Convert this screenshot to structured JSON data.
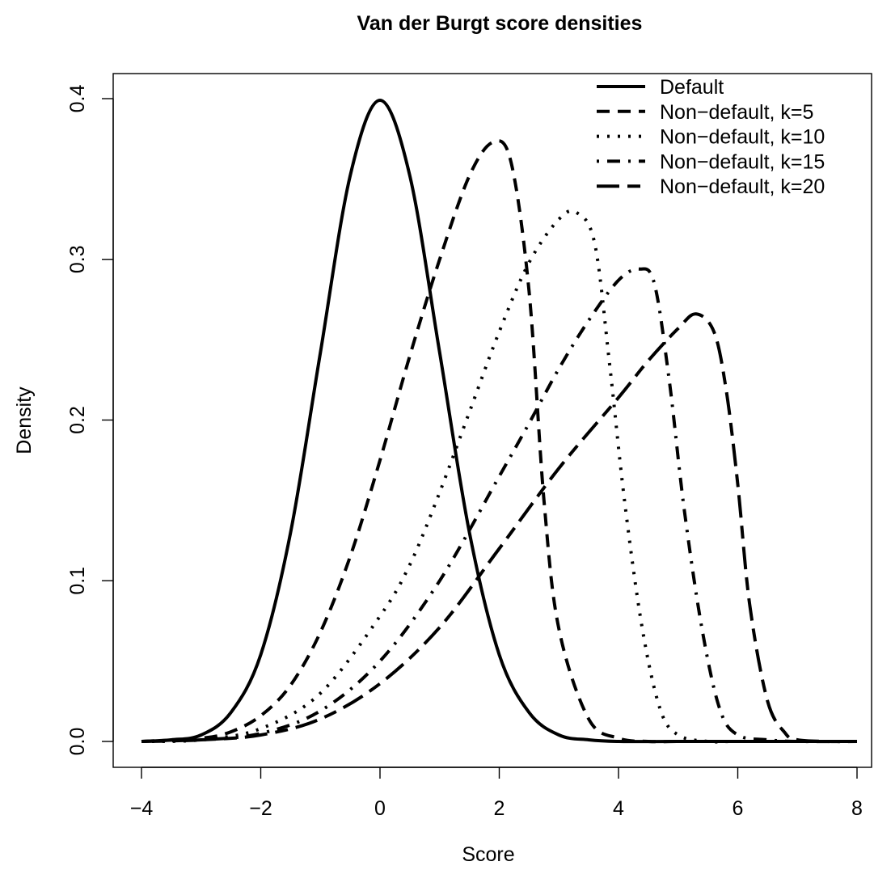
{
  "chart_data": {
    "type": "line",
    "title": "Van der Burgt score densities",
    "xlabel": "Score",
    "ylabel": "Density",
    "xlim": [
      -4,
      8
    ],
    "ylim": [
      0,
      0.4
    ],
    "xticks": [
      "−4",
      "−2",
      "0",
      "2",
      "4",
      "6",
      "8"
    ],
    "xtick_values": [
      -4,
      -2,
      0,
      2,
      4,
      6,
      8
    ],
    "yticks": [
      "0.0",
      "0.1",
      "0.2",
      "0.3",
      "0.4"
    ],
    "ytick_values": [
      0,
      0.1,
      0.2,
      0.3,
      0.4
    ],
    "grid": false,
    "legend_position": "top-right",
    "series": [
      {
        "name": "Default",
        "line_style": "solid",
        "x": [
          -4,
          -3.5,
          -3,
          -2.5,
          -2,
          -1.5,
          -1,
          -0.5,
          0,
          0.5,
          1,
          1.5,
          2,
          2.5,
          3,
          3.5,
          4,
          5,
          6,
          7,
          8
        ],
        "y": [
          0,
          0.001,
          0.004,
          0.018,
          0.054,
          0.13,
          0.242,
          0.352,
          0.399,
          0.352,
          0.242,
          0.13,
          0.054,
          0.018,
          0.004,
          0.001,
          0,
          0,
          0,
          0,
          0
        ]
      },
      {
        "name": "Non−default, k=5",
        "line_style": "dashed",
        "x": [
          -4,
          -3,
          -2.5,
          -2,
          -1.5,
          -1,
          -0.5,
          0,
          0.5,
          1,
          1.5,
          1.9,
          2.2,
          2.5,
          2.75,
          3,
          3.5,
          4,
          4.5,
          5,
          6,
          8
        ],
        "y": [
          0,
          0.002,
          0.006,
          0.016,
          0.035,
          0.068,
          0.115,
          0.175,
          0.24,
          0.3,
          0.352,
          0.373,
          0.36,
          0.28,
          0.15,
          0.07,
          0.014,
          0.002,
          0,
          0,
          0,
          0
        ]
      },
      {
        "name": "Non−default, k=10",
        "line_style": "dotted",
        "x": [
          -4,
          -3,
          -2,
          -1,
          0,
          0.5,
          1,
          1.5,
          2,
          2.5,
          3,
          3.3,
          3.6,
          3.85,
          4.1,
          4.4,
          4.7,
          5,
          5.5,
          6,
          8
        ],
        "y": [
          0,
          0.001,
          0.008,
          0.03,
          0.078,
          0.11,
          0.155,
          0.205,
          0.255,
          0.298,
          0.325,
          0.329,
          0.31,
          0.235,
          0.15,
          0.07,
          0.02,
          0.004,
          0,
          0,
          0
        ]
      },
      {
        "name": "Non−default, k=15",
        "line_style": "dotdash",
        "x": [
          -4,
          -3,
          -2,
          -1,
          0,
          1,
          2,
          2.5,
          3,
          3.5,
          4,
          4.35,
          4.6,
          4.85,
          5.1,
          5.4,
          5.7,
          6,
          6.5,
          7,
          8
        ],
        "y": [
          0,
          0.001,
          0.005,
          0.019,
          0.05,
          0.1,
          0.165,
          0.198,
          0.232,
          0.262,
          0.287,
          0.294,
          0.285,
          0.225,
          0.145,
          0.07,
          0.02,
          0.004,
          0.001,
          0,
          0
        ]
      },
      {
        "name": "Non−default, k=20",
        "line_style": "twodash",
        "x": [
          -4,
          -3,
          -2,
          -1,
          0,
          1,
          2,
          3,
          4,
          4.5,
          5,
          5.3,
          5.6,
          5.8,
          6,
          6.2,
          6.5,
          6.8,
          7,
          7.5,
          8
        ],
        "y": [
          0,
          0.001,
          0.004,
          0.014,
          0.036,
          0.071,
          0.12,
          0.17,
          0.214,
          0.237,
          0.257,
          0.266,
          0.255,
          0.22,
          0.16,
          0.085,
          0.025,
          0.005,
          0.001,
          0,
          0
        ]
      }
    ]
  }
}
